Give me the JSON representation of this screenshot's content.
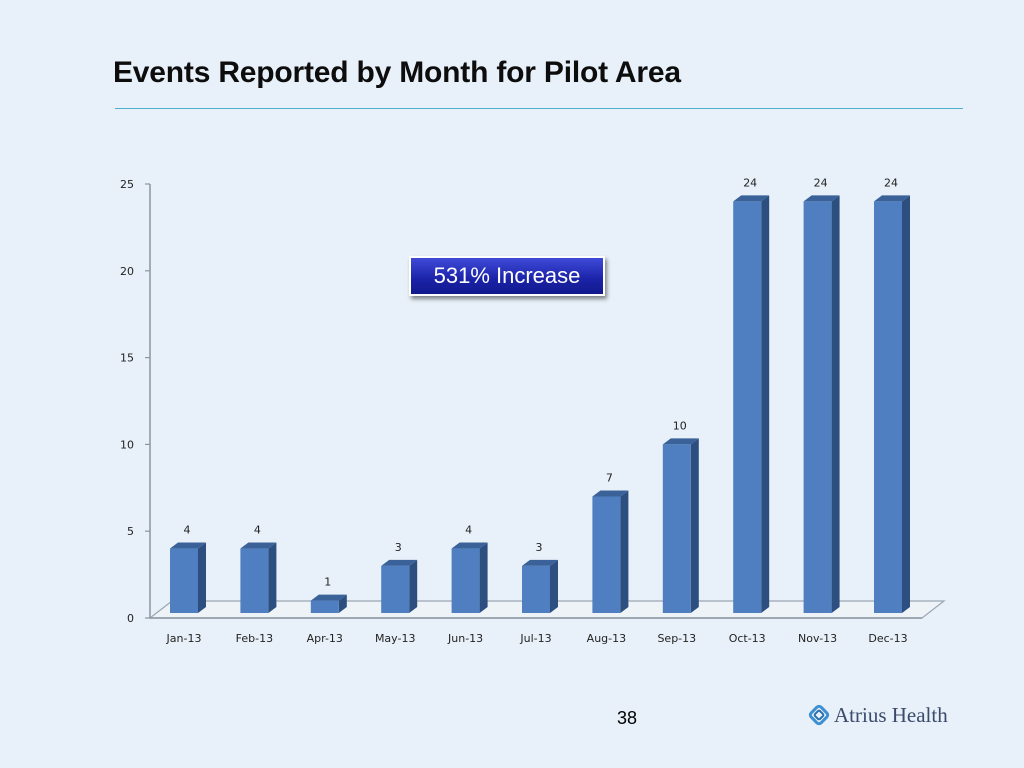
{
  "slide": {
    "title": "Events Reported by Month for Pilot Area",
    "callout": "531% Increase",
    "page_number": "38",
    "logo_text": "Atrius Health",
    "colors": {
      "background": "#e8f1f9",
      "bar_front": "#4f7fc0",
      "bar_side": "#2c4f80",
      "bar_top": "#3a6299",
      "title_rule": "#4fb0cc",
      "callout_fill": "#1a22a8",
      "logo_mark": "#3c8fd0"
    }
  },
  "chart_data": {
    "type": "bar",
    "categories": [
      "Jan-13",
      "Feb-13",
      "Apr-13",
      "May-13",
      "Jun-13",
      "Jul-13",
      "Aug-13",
      "Sep-13",
      "Oct-13",
      "Nov-13",
      "Dec-13"
    ],
    "values": [
      4,
      4,
      1,
      3,
      4,
      3,
      7,
      10,
      24,
      24,
      24
    ],
    "data_labels": [
      "4",
      "4",
      "1",
      "3",
      "4",
      "3",
      "7",
      "10",
      "24",
      "24",
      "24"
    ],
    "ylim": [
      0,
      25
    ],
    "yticks": [
      0,
      5,
      10,
      15,
      20,
      25
    ],
    "ytick_labels": [
      "0",
      "5",
      "10",
      "15",
      "20",
      "25"
    ],
    "grid": false,
    "style": "3d-column"
  }
}
